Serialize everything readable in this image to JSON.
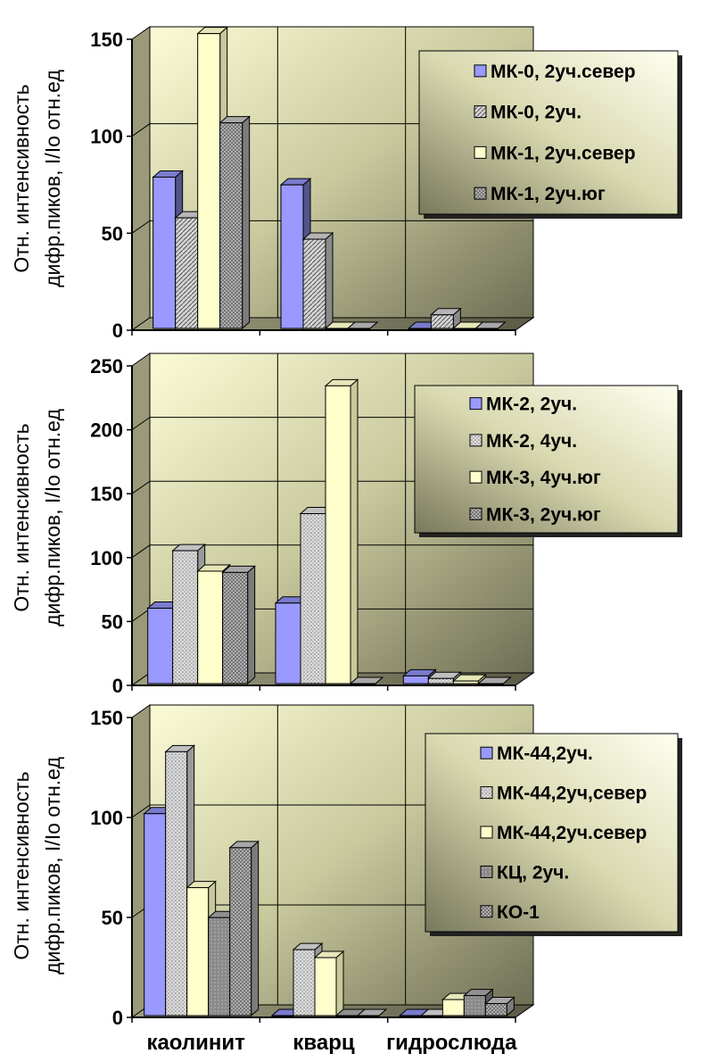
{
  "colors": {
    "blue": "#9999ff",
    "white_yellow": "#ffffcc",
    "panel_light": "#fafad2",
    "panel_dark": "#7f7f5f"
  },
  "chart_data": [
    {
      "type": "bar",
      "ylabel_line1": "Отн. интенсивность",
      "ylabel_line2": "дифр.пиков, I/Io отн.ед",
      "categories": [
        "каолинит",
        "кварц",
        "гидрослюда"
      ],
      "ylim": [
        0,
        150
      ],
      "yticks": [
        "0",
        "50",
        "100",
        "150"
      ],
      "grid": true,
      "legend_position": "top-right",
      "series": [
        {
          "name": "МК-0, 2уч.север",
          "values": [
            78,
            74,
            0
          ],
          "pattern": "blue"
        },
        {
          "name": "МК-0, 2уч.",
          "values": [
            57,
            46,
            7
          ],
          "pattern": "diag"
        },
        {
          "name": "МК-1, 2уч.север",
          "values": [
            152,
            0,
            0
          ],
          "pattern": "white"
        },
        {
          "name": "МК-1, 2уч.юг",
          "values": [
            106,
            0,
            0
          ],
          "pattern": "cross"
        }
      ]
    },
    {
      "type": "bar",
      "ylabel_line1": "Отн. интенсивность",
      "ylabel_line2": "дифр.пиков, I/Io отн.ед",
      "categories": [
        "каолинит",
        "кварц",
        "гидрослюда"
      ],
      "ylim": [
        0,
        250
      ],
      "yticks": [
        "0",
        "50",
        "100",
        "150",
        "200",
        "250"
      ],
      "grid": true,
      "legend_position": "top-right",
      "series": [
        {
          "name": "МК-2, 2уч.",
          "values": [
            59,
            63,
            6
          ],
          "pattern": "blue"
        },
        {
          "name": "МК-2, 4уч.",
          "values": [
            104,
            133,
            4
          ],
          "pattern": "dots"
        },
        {
          "name": "МК-3, 4уч.юг",
          "values": [
            88,
            233,
            2
          ],
          "pattern": "white"
        },
        {
          "name": "МК-3, 2уч.юг",
          "values": [
            87,
            0,
            0
          ],
          "pattern": "cross"
        }
      ]
    },
    {
      "type": "bar",
      "ylabel_line1": "Отн. интенсивность",
      "ylabel_line2": "дифр.пиков, I/Io отн.ед",
      "categories": [
        "каолинит",
        "кварц",
        "гидрослюда"
      ],
      "ylim": [
        0,
        150
      ],
      "yticks": [
        "0",
        "50",
        "100",
        "150"
      ],
      "grid": true,
      "legend_position": "top-right",
      "series": [
        {
          "name": "МК-44,2уч.",
          "values": [
            101,
            0,
            0
          ],
          "pattern": "blue"
        },
        {
          "name": "МК-44,2уч,север",
          "values": [
            132,
            33,
            0
          ],
          "pattern": "dots"
        },
        {
          "name": "МК-44,2уч.север",
          "values": [
            64,
            29,
            8
          ],
          "pattern": "white"
        },
        {
          "name": "КЦ, 2уч.",
          "values": [
            49,
            0,
            10
          ],
          "pattern": "gray"
        },
        {
          "name": "КО-1",
          "values": [
            84,
            0,
            6
          ],
          "pattern": "cross"
        }
      ]
    }
  ]
}
